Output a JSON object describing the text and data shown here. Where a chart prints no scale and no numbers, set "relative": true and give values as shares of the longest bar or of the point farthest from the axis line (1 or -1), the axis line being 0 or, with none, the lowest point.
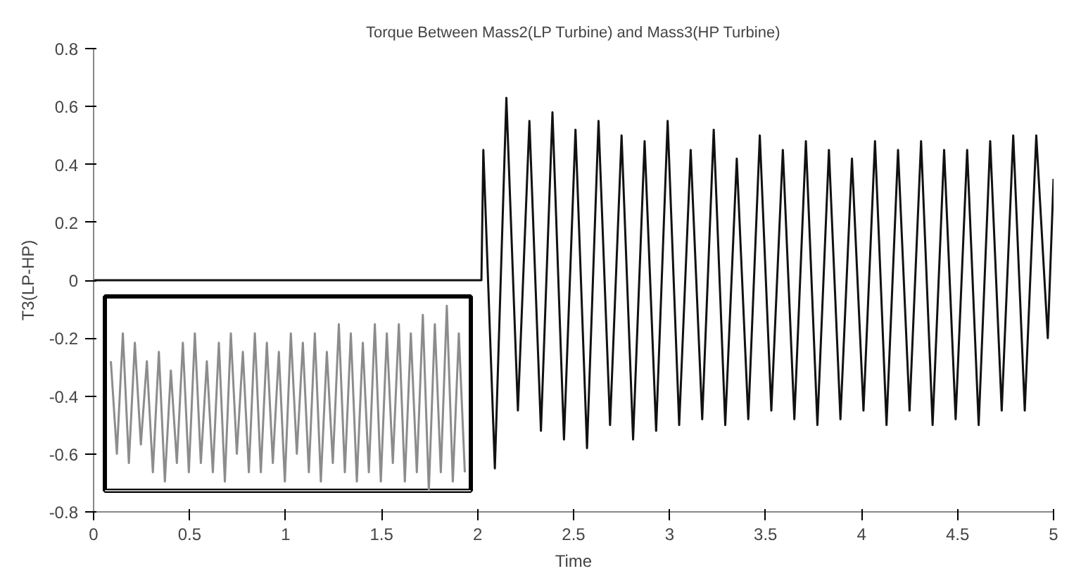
{
  "chart_data": [
    {
      "type": "line",
      "title": "Torque Between Mass2(LP Turbine) and Mass3(HP Turbine)",
      "xlabel": "Time",
      "ylabel": "T3(LP-HP)",
      "xlim": [
        0,
        5
      ],
      "ylim": [
        -0.8,
        0.8
      ],
      "xticks": [
        0,
        0.5,
        1,
        1.5,
        2,
        2.5,
        3,
        3.5,
        4,
        4.5,
        5
      ],
      "yticks": [
        -0.8,
        -0.6,
        -0.4,
        -0.2,
        0,
        0.2,
        0.4,
        0.6,
        0.8
      ],
      "series": [
        {
          "color": "#111111",
          "x": [
            0,
            2.02,
            2.03,
            2.09,
            2.15,
            2.21,
            2.27,
            2.33,
            2.39,
            2.45,
            2.51,
            2.57,
            2.63,
            2.69,
            2.75,
            2.81,
            2.87,
            2.93,
            2.99,
            3.05,
            3.11,
            3.17,
            3.23,
            3.29,
            3.35,
            3.41,
            3.47,
            3.53,
            3.59,
            3.65,
            3.71,
            3.77,
            3.83,
            3.89,
            3.95,
            4.01,
            4.07,
            4.13,
            4.19,
            4.25,
            4.31,
            4.37,
            4.43,
            4.49,
            4.55,
            4.61,
            4.67,
            4.73,
            4.79,
            4.85,
            4.91,
            4.97,
            5.0
          ],
          "values": [
            0,
            0,
            0.45,
            -0.65,
            0.63,
            -0.45,
            0.55,
            -0.52,
            0.58,
            -0.55,
            0.52,
            -0.58,
            0.55,
            -0.5,
            0.5,
            -0.55,
            0.48,
            -0.52,
            0.55,
            -0.5,
            0.45,
            -0.48,
            0.52,
            -0.5,
            0.42,
            -0.48,
            0.5,
            -0.45,
            0.45,
            -0.48,
            0.48,
            -0.5,
            0.45,
            -0.48,
            0.42,
            -0.45,
            0.48,
            -0.5,
            0.45,
            -0.45,
            0.48,
            -0.5,
            0.45,
            -0.48,
            0.45,
            -0.5,
            0.48,
            -0.45,
            0.5,
            -0.45,
            0.5,
            -0.2,
            0.35
          ]
        }
      ]
    },
    {
      "type": "line",
      "relative": true,
      "categories": [
        null,
        null,
        null,
        null,
        null,
        null,
        null,
        null,
        null,
        null,
        null,
        null,
        null,
        null,
        null,
        null,
        null,
        null,
        null,
        null,
        null,
        null,
        null,
        null,
        null,
        null,
        null,
        null,
        null,
        null,
        null,
        null,
        null,
        null,
        null,
        null,
        null,
        null,
        null,
        null,
        null,
        null,
        null,
        null,
        null,
        null,
        null,
        null,
        null,
        null,
        null,
        null,
        null,
        null,
        null,
        null,
        null,
        null,
        null,
        null
      ],
      "series": [
        {
          "color": "#8c8c8c",
          "values": [
            0.7,
            0.2,
            0.85,
            0.15,
            0.8,
            0.25,
            0.7,
            0.1,
            0.75,
            0.05,
            0.65,
            0.15,
            0.8,
            0.1,
            0.85,
            0.15,
            0.7,
            0.1,
            0.8,
            0.05,
            0.85,
            0.2,
            0.75,
            0.1,
            0.85,
            0.1,
            0.8,
            0.15,
            0.75,
            0.05,
            0.85,
            0.2,
            0.8,
            0.1,
            0.85,
            0.05,
            0.75,
            0.15,
            0.9,
            0.1,
            0.85,
            0.05,
            0.8,
            0.1,
            0.9,
            0.05,
            0.85,
            0.15,
            0.9,
            0.05,
            0.85,
            0.1,
            0.95,
            0.0,
            0.9,
            0.1,
            1.0,
            0.05,
            0.85,
            0.1
          ]
        }
      ]
    }
  ]
}
